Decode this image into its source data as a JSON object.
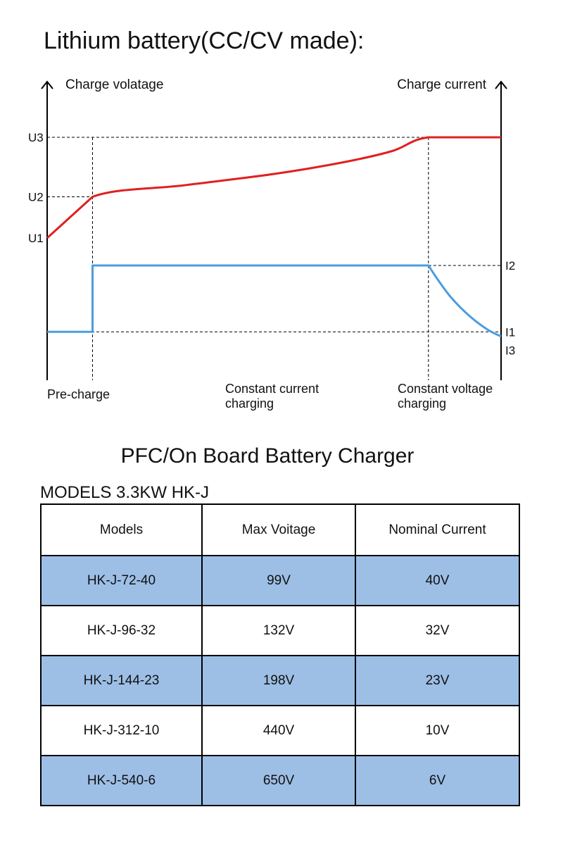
{
  "page": {
    "title": "Lithium battery(CC/CV made):",
    "subtitle": "PFC/On Board Battery Charger",
    "models_heading": "MODELS  3.3KW HK-J"
  },
  "chart_data": {
    "type": "line",
    "title": "Lithium battery(CC/CV made):",
    "left_axis_label": "Charge volatage",
    "right_axis_label": "Charge current",
    "left_ticks": [
      "U3",
      "U2",
      "U1"
    ],
    "right_ticks": [
      "I2",
      "I1",
      "I3"
    ],
    "phases": [
      "Pre-charge",
      "Constant current charging",
      "Constant voltage charging"
    ],
    "phase_label_lines": [
      [
        "Pre-charge"
      ],
      [
        "Constant current",
        "charging"
      ],
      [
        "Constant voltage",
        "charging"
      ]
    ],
    "phase_boundaries": [
      0.1,
      0.84
    ],
    "series": [
      {
        "key": "voltage",
        "color": "#e02020",
        "points": [
          [
            0,
            0.56
          ],
          [
            0.1,
            0.74
          ],
          [
            0.3,
            0.79
          ],
          [
            0.5,
            0.84
          ],
          [
            0.65,
            0.89
          ],
          [
            0.76,
            0.94
          ],
          [
            0.84,
            1.0
          ],
          [
            1.0,
            1.0
          ]
        ]
      },
      {
        "key": "current",
        "color": "#4a9de0",
        "points": [
          [
            0,
            0.15
          ],
          [
            0.1,
            0.15
          ],
          [
            0.1,
            0.44
          ],
          [
            0.84,
            0.44
          ],
          [
            0.86,
            0.38
          ],
          [
            0.89,
            0.3
          ],
          [
            0.93,
            0.22
          ],
          [
            0.97,
            0.16
          ],
          [
            1.0,
            0.13
          ]
        ]
      }
    ],
    "left_tick_values": [
      1.0,
      0.74,
      0.56
    ],
    "right_tick_values": [
      0.44,
      0.15,
      0.07
    ],
    "grid": false
  },
  "table": {
    "headers": [
      "Models",
      "Max Voitage",
      "Nominal Current"
    ],
    "rows": [
      [
        "HK-J-72-40",
        "99V",
        "40V"
      ],
      [
        "HK-J-96-32",
        "132V",
        "32V"
      ],
      [
        "HK-J-144-23",
        "198V",
        "23V"
      ],
      [
        "HK-J-312-10",
        "440V",
        "10V"
      ],
      [
        "HK-J-540-6",
        "650V",
        "6V"
      ]
    ],
    "shaded_color": "#9dbfe6"
  }
}
